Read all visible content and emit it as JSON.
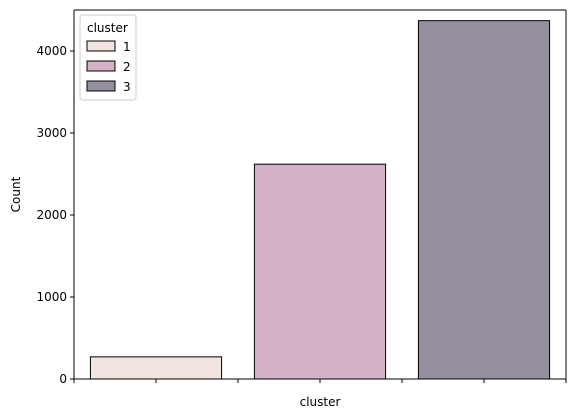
{
  "chart_data": {
    "type": "bar",
    "title": "",
    "xlabel": "cluster",
    "ylabel": "Count",
    "categories": [
      "1",
      "2",
      "3"
    ],
    "values": [
      270,
      2620,
      4370
    ],
    "colors": [
      "#f2e4e1",
      "#d4b1c7",
      "#958fa0"
    ],
    "edge_color": "#000000",
    "ylim": [
      0,
      4500
    ],
    "yticks": [
      0,
      1000,
      2000,
      3000,
      4000
    ],
    "xlim": [
      0.5,
      3.5
    ],
    "xticks": [
      0.5,
      1,
      1.5,
      2,
      2.5,
      3,
      3.5
    ],
    "grid": false,
    "legend": {
      "title": "cluster",
      "position": "top-left",
      "entries": [
        "1",
        "2",
        "3"
      ]
    }
  }
}
